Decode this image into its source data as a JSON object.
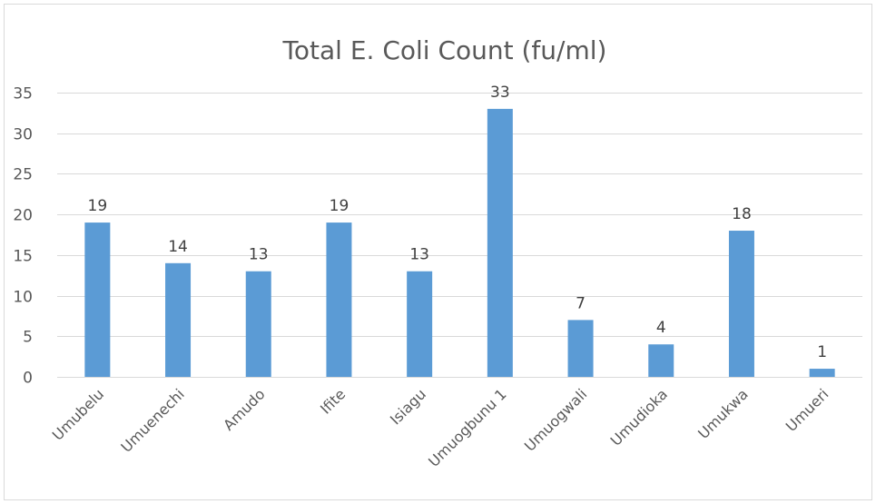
{
  "chart_data": {
    "type": "bar",
    "title": "Total E. Coli Count (fu/ml)",
    "xlabel": "",
    "ylabel": "",
    "categories": [
      "Umubelu",
      "Umuenechi",
      "Amudo",
      "Ifite",
      "Isiagu",
      "Umuogbunu 1",
      "Umuogwali",
      "Umudioka",
      "Umukwa",
      "Umueri"
    ],
    "values": [
      19,
      14,
      13,
      19,
      13,
      33,
      7,
      4,
      18,
      1
    ],
    "ylim": [
      0,
      35
    ],
    "yticks": [
      0,
      5,
      10,
      15,
      20,
      25,
      30,
      35
    ],
    "grid": true,
    "legend": "none",
    "data_labels": true,
    "colors": {
      "bar": "#5b9bd5",
      "grid": "#d9d9d9",
      "text": "#595959",
      "border": "#d9d9d9"
    }
  }
}
